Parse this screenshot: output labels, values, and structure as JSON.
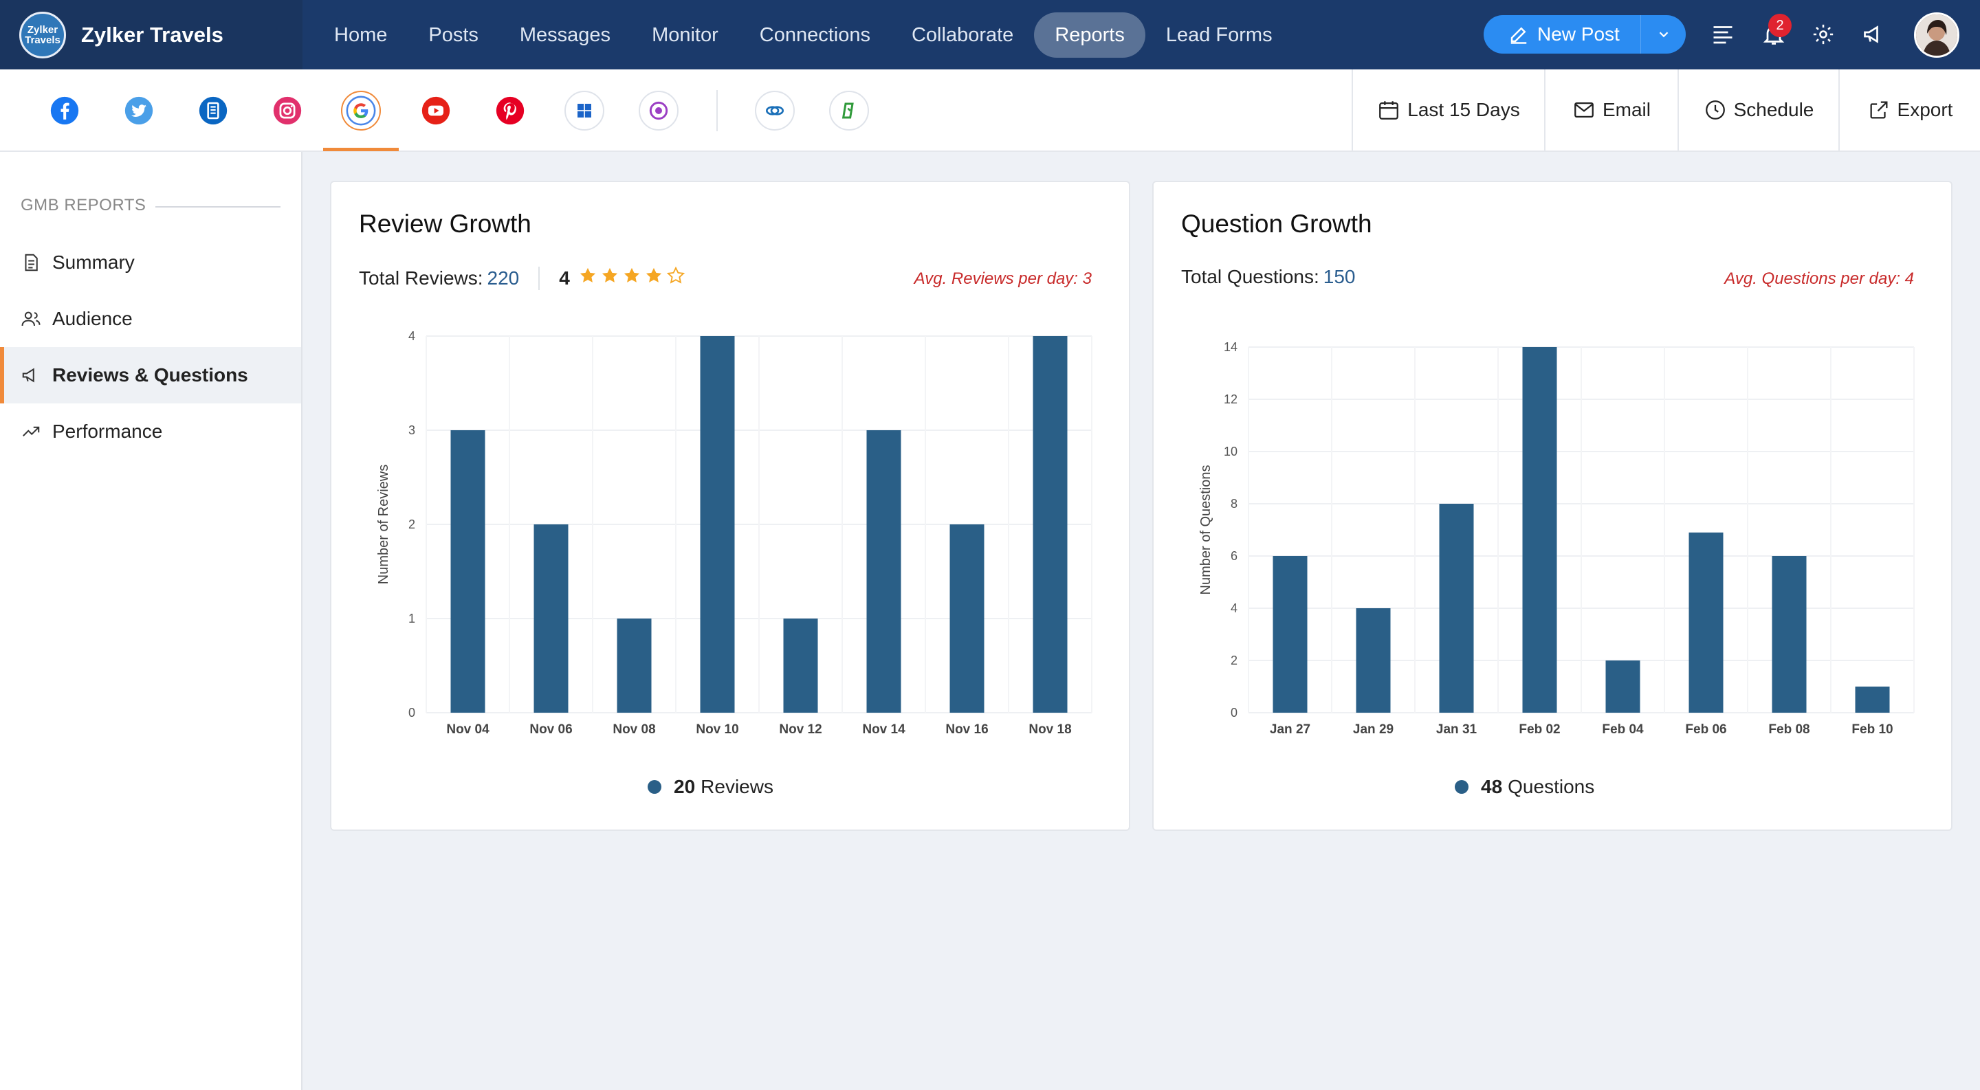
{
  "app": {
    "name": "Zylker Travels",
    "logo_text_line1": "Zylker",
    "logo_text_line2": "Travels"
  },
  "nav": {
    "items": [
      "Home",
      "Posts",
      "Messages",
      "Monitor",
      "Connections",
      "Collaborate",
      "Reports",
      "Lead Forms"
    ],
    "active": "Reports"
  },
  "actions": {
    "new_post_label": "New Post",
    "notification_count": "2"
  },
  "social_tabs": {
    "items": [
      "facebook-icon",
      "twitter-icon",
      "linkedin-page-icon",
      "instagram-icon",
      "google-business-icon",
      "youtube-icon",
      "pinterest-icon",
      "microsoft-icon",
      "threads-icon",
      "zoho-crm-icon",
      "zoho-desk-icon"
    ],
    "active": "google-business-icon"
  },
  "toolbar": {
    "date_range": "Last 15 Days",
    "email": "Email",
    "schedule": "Schedule",
    "export": "Export"
  },
  "sidebar": {
    "heading": "GMB REPORTS",
    "items": [
      {
        "label": "Summary",
        "icon": "document-icon"
      },
      {
        "label": "Audience",
        "icon": "users-icon"
      },
      {
        "label": "Reviews & Questions",
        "icon": "megaphone-icon"
      },
      {
        "label": "Performance",
        "icon": "trend-icon"
      }
    ],
    "active": "Reviews & Questions"
  },
  "review_card": {
    "title": "Review Growth",
    "total_label": "Total Reviews:",
    "total_value": "220",
    "rating": "4",
    "rating_stars": 4,
    "avg_text": "Avg. Reviews per day: 3",
    "legend_count": "20",
    "legend_label": "Reviews"
  },
  "question_card": {
    "title": "Question Growth",
    "total_label": "Total Questions:",
    "total_value": "150",
    "avg_text": "Avg. Questions per day: 4",
    "legend_count": "48",
    "legend_label": "Questions"
  },
  "colors": {
    "nav_bg": "#1b3a6b",
    "accent": "#2b8cf2",
    "bar": "#2a5f87",
    "highlight": "#f08a3a",
    "avg_text": "#c82a2a"
  },
  "chart_data": [
    {
      "type": "bar",
      "categories": [
        "Nov 04",
        "Nov 06",
        "Nov 08",
        "Nov 10",
        "Nov 12",
        "Nov 14",
        "Nov 16",
        "Nov 18"
      ],
      "values": [
        3,
        2,
        1,
        4,
        1,
        3,
        2,
        4
      ],
      "title": "Review Growth",
      "xlabel": "",
      "ylabel": "Number of Reviews",
      "ylim": [
        0,
        4
      ],
      "yticks": [
        0,
        1,
        2,
        3,
        4
      ],
      "grid": true,
      "legend": "bottom-center"
    },
    {
      "type": "bar",
      "categories": [
        "Jan 27",
        "Jan 29",
        "Jan 31",
        "Feb 02",
        "Feb 04",
        "Feb 06",
        "Feb 08",
        "Feb 10"
      ],
      "values": [
        6,
        4,
        8,
        14,
        2,
        6.9,
        6,
        1
      ],
      "title": "Question Growth",
      "xlabel": "",
      "ylabel": "Number of Questions",
      "ylim": [
        0,
        14
      ],
      "yticks": [
        0,
        2,
        4,
        6,
        8,
        10,
        12,
        14
      ],
      "grid": true,
      "legend": "bottom-center"
    }
  ]
}
